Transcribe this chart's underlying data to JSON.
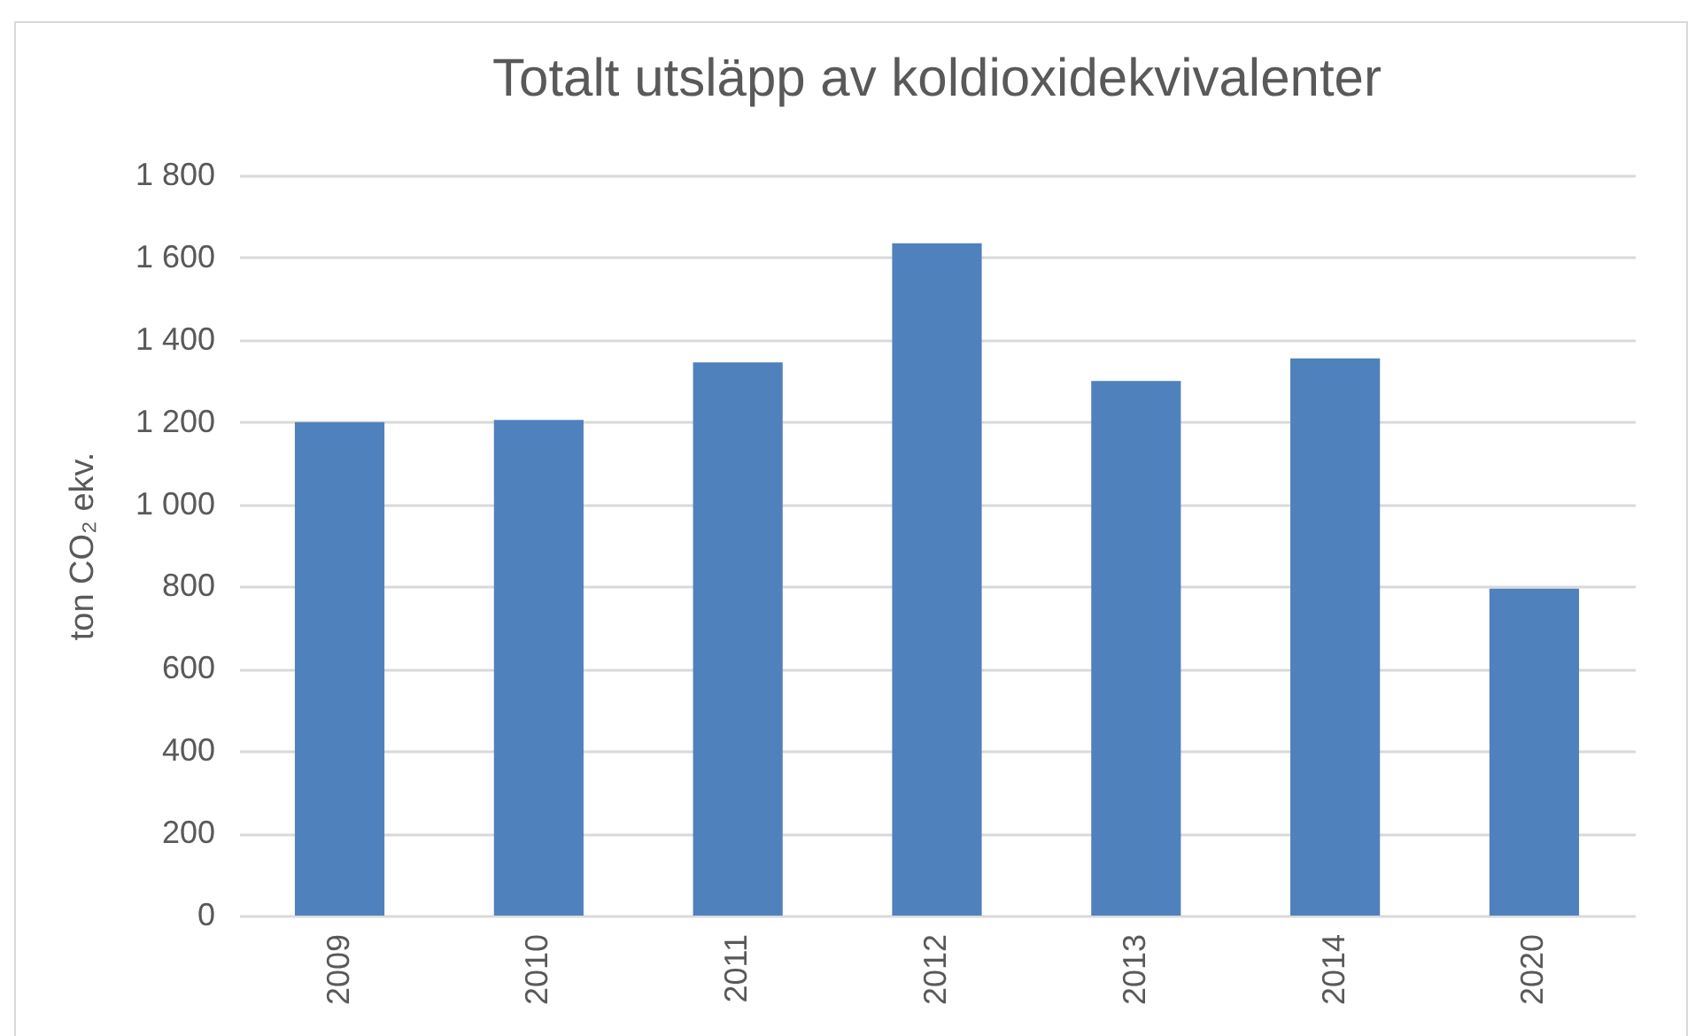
{
  "chart_data": {
    "type": "bar",
    "title": "Totalt utsläpp av koldioxidekvivalenter",
    "ylabel": "ton CO₂ ekv.",
    "categories": [
      "2009",
      "2010",
      "2011",
      "2012",
      "2013",
      "2014",
      "2020"
    ],
    "values": [
      1200,
      1205,
      1345,
      1635,
      1300,
      1355,
      795
    ],
    "color": "#4f81bd",
    "ylim": [
      0,
      1800
    ],
    "yticks": [
      0,
      200,
      400,
      600,
      800,
      {
        "value": 1000,
        "label": "1 000"
      },
      {
        "value": 1200,
        "label": "1 200"
      },
      {
        "value": 1400,
        "label": "1 400"
      },
      {
        "value": 1600,
        "label": "1 600"
      },
      {
        "value": 1800,
        "label": "1 800"
      }
    ],
    "grid": "y"
  }
}
